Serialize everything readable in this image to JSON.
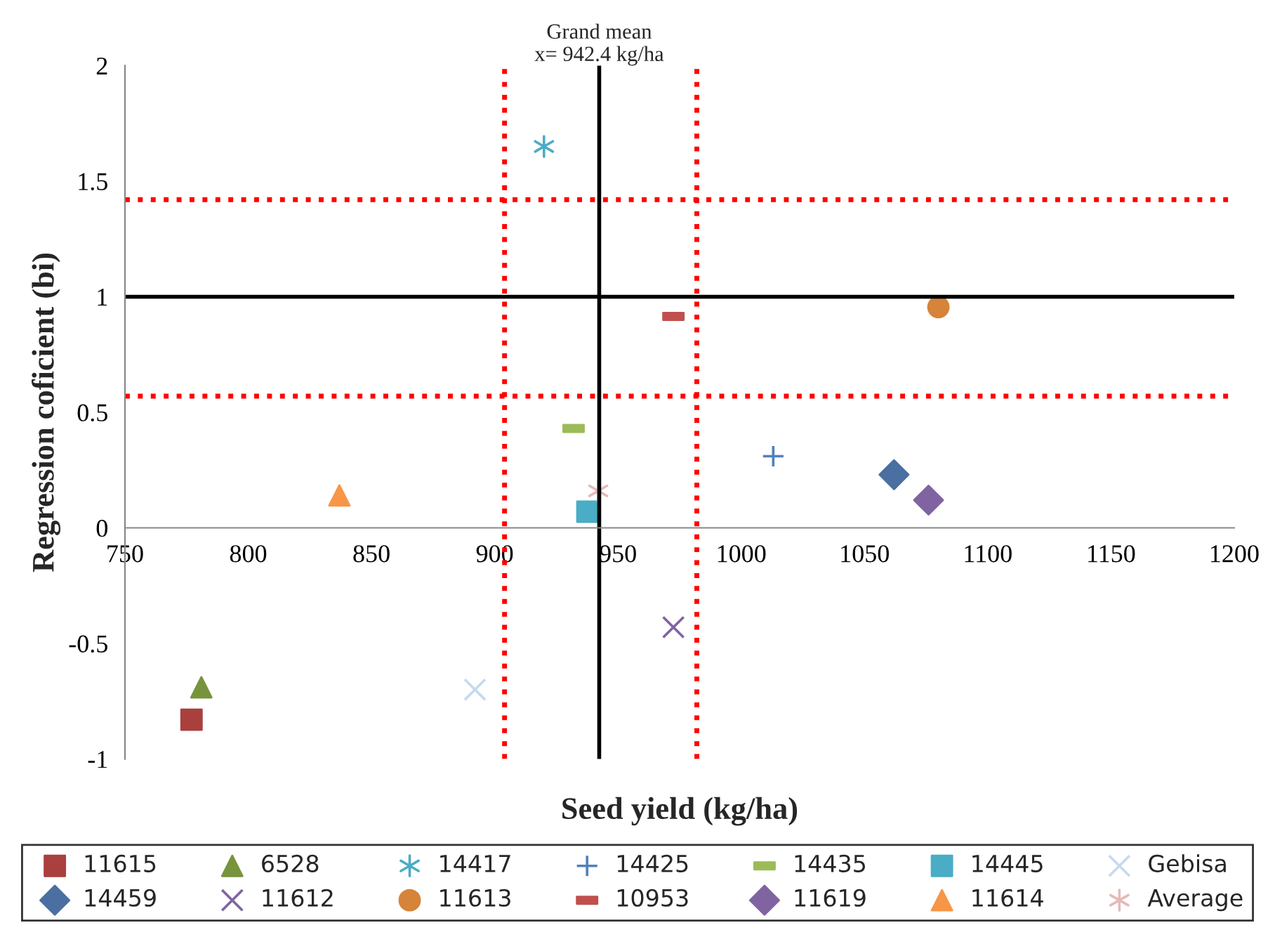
{
  "chart_data": {
    "type": "scatter",
    "xlabel": "Seed yield (kg/ha)",
    "ylabel": "Regression coficient (bi)",
    "xlim": [
      750,
      1200
    ],
    "xticks": [
      750,
      800,
      850,
      900,
      950,
      1000,
      1050,
      1100,
      1150,
      1200
    ],
    "ylim": [
      -1,
      2
    ],
    "yticks": [
      -1,
      -0.5,
      0,
      0.5,
      1,
      1.5,
      2
    ],
    "grid": false,
    "legend": "bottom",
    "series": [
      {
        "name": "11615",
        "color": "#a9403e",
        "marker": "square",
        "x": [
          777
        ],
        "values": [
          -0.83
        ]
      },
      {
        "name": "14459",
        "color": "#4a6fa0",
        "marker": "diamond",
        "x": [
          1062
        ],
        "values": [
          0.23
        ]
      },
      {
        "name": "6528",
        "color": "#77933c",
        "marker": "triangle",
        "x": [
          781
        ],
        "values": [
          -0.69
        ]
      },
      {
        "name": "11612",
        "color": "#8064a2",
        "marker": "x",
        "x": [
          972.5
        ],
        "values": [
          -0.43
        ]
      },
      {
        "name": "14417",
        "color": "#4bacc6",
        "marker": "cross",
        "x": [
          920
        ],
        "values": [
          1.65
        ]
      },
      {
        "name": "11613",
        "color": "#d6843a",
        "marker": "circle",
        "x": [
          1080
        ],
        "values": [
          0.955
        ]
      },
      {
        "name": "14425",
        "color": "#4f81bd",
        "marker": "plus",
        "x": [
          1013
        ],
        "values": [
          0.31
        ]
      },
      {
        "name": "10953",
        "color": "#c0504d",
        "x": [
          972.5
        ],
        "values": [
          0.915
        ]
      },
      {
        "name": "14435",
        "color": "#9bbb59",
        "x": [
          932
        ],
        "values": [
          0.43
        ]
      },
      {
        "name": "11619",
        "color": "#8064a2",
        "marker": "diamond",
        "x": [
          1076
        ],
        "values": [
          0.12
        ]
      },
      {
        "name": "14445",
        "color": "#4bacc6",
        "marker": "square",
        "x": [
          937.6
        ],
        "values": [
          0.07
        ]
      },
      {
        "name": "11614",
        "color": "#f79646",
        "marker": "triangle",
        "x": [
          837
        ],
        "values": [
          0.14
        ]
      },
      {
        "name": "Gebisa",
        "color": "#c6d9f1",
        "marker": "x",
        "x": [
          892
        ],
        "values": [
          -0.7
        ]
      },
      {
        "name": "Average",
        "color": "#e6b9b8",
        "marker": "cross",
        "x": [
          942
        ],
        "values": [
          0.16
        ]
      }
    ],
    "ref_lines": [
      {
        "axis": "y",
        "value": 1,
        "color": "#000000",
        "line_style": "solid"
      },
      {
        "axis": "x",
        "value": 942.4,
        "label": "Grand mean\nx= 942.4 kg/ha",
        "color": "#000000",
        "line_style": "solid"
      },
      {
        "axis": "y",
        "value": 1.42,
        "color": "#ff0000",
        "line_style": "dotted"
      },
      {
        "axis": "y",
        "value": 0.57,
        "color": "#ff0000",
        "line_style": "dotted"
      },
      {
        "axis": "x",
        "value": 904,
        "color": "#ff0000",
        "line_style": "dotted"
      },
      {
        "axis": "x",
        "value": 982,
        "color": "#ff0000",
        "line_style": "dotted"
      }
    ]
  }
}
